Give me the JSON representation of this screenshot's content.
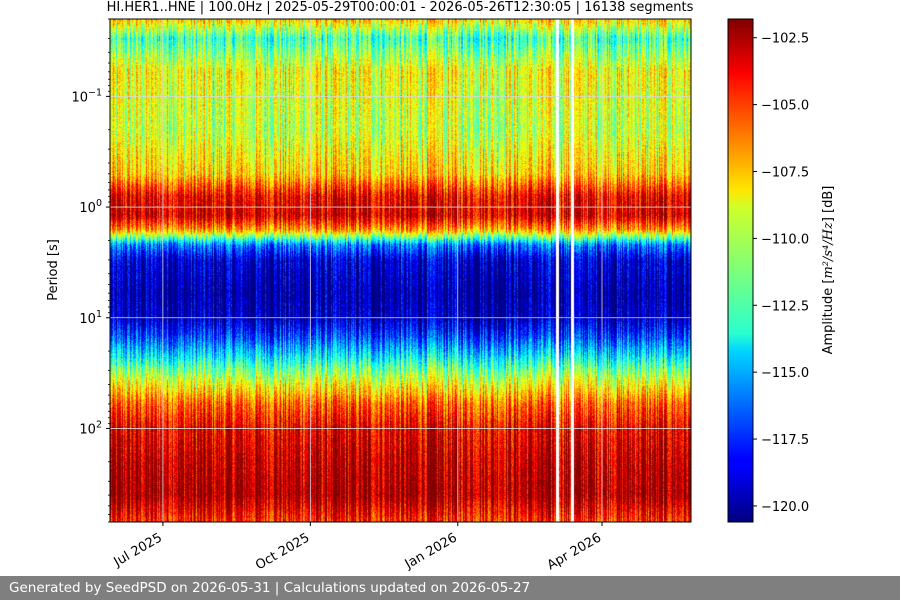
{
  "chart_data": {
    "type": "heatmap",
    "title": "HI.HER1..HNE | 100.0Hz | 2025-05-29T00:00:01 - 2026-05-26T12:30:05 | 16138 segments",
    "xlabel": "",
    "ylabel": "Period [s]",
    "x_range": [
      "2025-05-29",
      "2026-05-26"
    ],
    "x_ticks": [
      {
        "date": "2025-07-01",
        "label": "Jul 2025"
      },
      {
        "date": "2025-10-01",
        "label": "Oct 2025"
      },
      {
        "date": "2026-01-01",
        "label": "Jan 2026"
      },
      {
        "date": "2026-04-01",
        "label": "Apr 2026"
      }
    ],
    "y_scale": "log",
    "y_inverted": true,
    "y_range": [
      0.02,
      700
    ],
    "y_ticks": [
      {
        "value": 0.1,
        "base": "10",
        "exp": "−1"
      },
      {
        "value": 1,
        "base": "10",
        "exp": "0"
      },
      {
        "value": 10,
        "base": "10",
        "exp": "1"
      },
      {
        "value": 100,
        "base": "10",
        "exp": "2"
      }
    ],
    "grid": true,
    "colormap": "jet",
    "colorbar": {
      "label_prefix": "Amplitude [",
      "label_math": "m²/s⁴/Hz",
      "label_suffix": "] [dB]",
      "range": [
        -120.6,
        -101.8
      ],
      "ticks": [
        -102.5,
        -105.0,
        -107.5,
        -110.0,
        -112.5,
        -115.0,
        -117.5,
        -120.0
      ],
      "tick_labels": [
        "−102.5",
        "−105.0",
        "−107.5",
        "−110.0",
        "−112.5",
        "−115.0",
        "−117.5",
        "−120.0"
      ]
    },
    "band_profile": [
      {
        "period": 0.02,
        "db": -108
      },
      {
        "period": 0.03,
        "db": -112.5
      },
      {
        "period": 0.06,
        "db": -109
      },
      {
        "period": 0.1,
        "db": -109.5
      },
      {
        "period": 0.2,
        "db": -110
      },
      {
        "period": 0.5,
        "db": -108
      },
      {
        "period": 0.8,
        "db": -104
      },
      {
        "period": 1.2,
        "db": -103.5
      },
      {
        "period": 1.6,
        "db": -107
      },
      {
        "period": 2.2,
        "db": -116
      },
      {
        "period": 3,
        "db": -119
      },
      {
        "period": 6,
        "db": -120
      },
      {
        "period": 10,
        "db": -119.5
      },
      {
        "period": 15,
        "db": -117
      },
      {
        "period": 22,
        "db": -114
      },
      {
        "period": 35,
        "db": -110
      },
      {
        "period": 60,
        "db": -106
      },
      {
        "period": 100,
        "db": -104
      },
      {
        "period": 200,
        "db": -103
      },
      {
        "period": 400,
        "db": -102.5
      },
      {
        "period": 700,
        "db": -105
      }
    ],
    "gaps": [
      "2026-03-04",
      "2026-03-13"
    ]
  },
  "footer": {
    "text": "Generated by SeedPSD on 2026-05-31 | Calculations updated on 2026-05-27"
  }
}
